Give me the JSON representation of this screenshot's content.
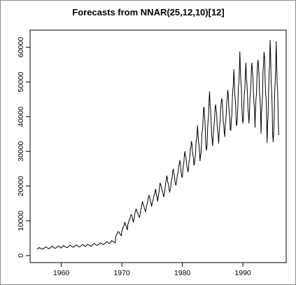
{
  "chart_data": {
    "type": "line",
    "title": "Forecasts from NNAR(25,12,10)[12]",
    "xlabel": "",
    "ylabel": "",
    "xlim": [
      1956,
      1996
    ],
    "ylim": [
      0,
      62500
    ],
    "x_ticks": [
      1960,
      1970,
      1980,
      1990
    ],
    "y_ticks": [
      0,
      10000,
      20000,
      30000,
      40000,
      50000,
      60000
    ],
    "grid": false,
    "series": [
      {
        "frequency": 12,
        "start": 1956,
        "color": "#000000",
        "annual_troughs": [
          1800,
          1900,
          2000,
          2100,
          2200,
          2300,
          2400,
          2500,
          2600,
          2800,
          3000,
          3300,
          3600,
          5500,
          7000,
          9000,
          10500,
          12000,
          13500,
          15000,
          16500,
          17500,
          19000,
          21000,
          23000,
          25000,
          26000,
          28000,
          30000,
          32000,
          33000,
          34500,
          35500,
          36500,
          37500,
          38500,
          38000,
          36000,
          32000,
          31000
        ],
        "annual_peaks": [
          2300,
          2500,
          2700,
          2800,
          2900,
          3000,
          3100,
          3200,
          3300,
          3500,
          3700,
          4000,
          4300,
          7000,
          9500,
          12000,
          13500,
          15500,
          17500,
          19000,
          21000,
          23000,
          25000,
          27500,
          30000,
          33000,
          37000,
          43500,
          47000,
          44000,
          46000,
          48000,
          53000,
          57500,
          55000,
          56000,
          57500,
          59500,
          61500,
          60000
        ],
        "annual_peak_month": [
          4,
          5,
          6,
          7,
          4,
          5,
          6,
          7,
          4,
          5,
          6,
          7,
          4,
          5,
          6,
          7,
          4,
          5,
          6,
          7,
          4,
          5,
          6,
          7,
          5,
          6,
          6,
          7,
          6,
          6,
          6,
          6,
          6,
          6,
          6,
          6,
          6,
          6,
          6,
          6
        ],
        "annual_peak_dates": [
          1956.33,
          1957.42,
          1958.5,
          1959.58,
          1960.33,
          1961.42,
          1962.5,
          1963.58,
          1964.33,
          1965.42,
          1966.5,
          1967.58,
          1968.33,
          1969.42,
          1970.5,
          1971.58,
          1972.33,
          1973.42,
          1974.5,
          1975.58,
          1976.33,
          1977.42,
          1978.5,
          1979.58,
          1980.42,
          1981.5,
          1982.5,
          1983.58,
          1984.5,
          1985.5,
          1986.5,
          1987.5,
          1988.5,
          1989.5,
          1990.5,
          1991.5,
          1992.5,
          1993.5,
          1994.5,
          1995.5
        ]
      }
    ]
  }
}
